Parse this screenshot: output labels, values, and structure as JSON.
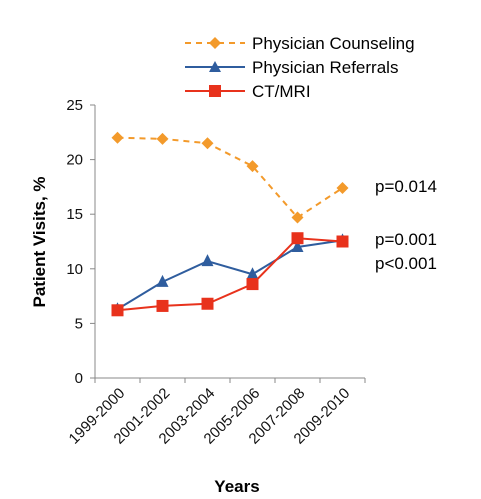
{
  "chart_data": {
    "type": "line",
    "title": "",
    "xlabel": "Years",
    "ylabel": "Patient Visits, %",
    "categories": [
      "1999-2000",
      "2001-2002",
      "2003-2004",
      "2005-2006",
      "2007-2008",
      "2009-2010"
    ],
    "ylim": [
      0,
      25
    ],
    "yticks": [
      0,
      5,
      10,
      15,
      20,
      25
    ],
    "legend_position": "top-right",
    "series": [
      {
        "name": "Physician Counseling",
        "values": [
          22.0,
          21.9,
          21.5,
          19.4,
          14.7,
          17.4
        ],
        "color": "#F39A2B",
        "marker": "diamond",
        "line_style": "dashed"
      },
      {
        "name": "Physician Referrals",
        "values": [
          6.3,
          8.8,
          10.7,
          9.5,
          12.0,
          12.6
        ],
        "color": "#2F5D9E",
        "marker": "triangle",
        "line_style": "solid"
      },
      {
        "name": "CT/MRI",
        "values": [
          6.2,
          6.6,
          6.8,
          8.6,
          12.8,
          12.5
        ],
        "color": "#E8321C",
        "marker": "square",
        "line_style": "solid"
      }
    ],
    "annotations": [
      "p=0.014",
      "p=0.001",
      "p<0.001"
    ]
  }
}
